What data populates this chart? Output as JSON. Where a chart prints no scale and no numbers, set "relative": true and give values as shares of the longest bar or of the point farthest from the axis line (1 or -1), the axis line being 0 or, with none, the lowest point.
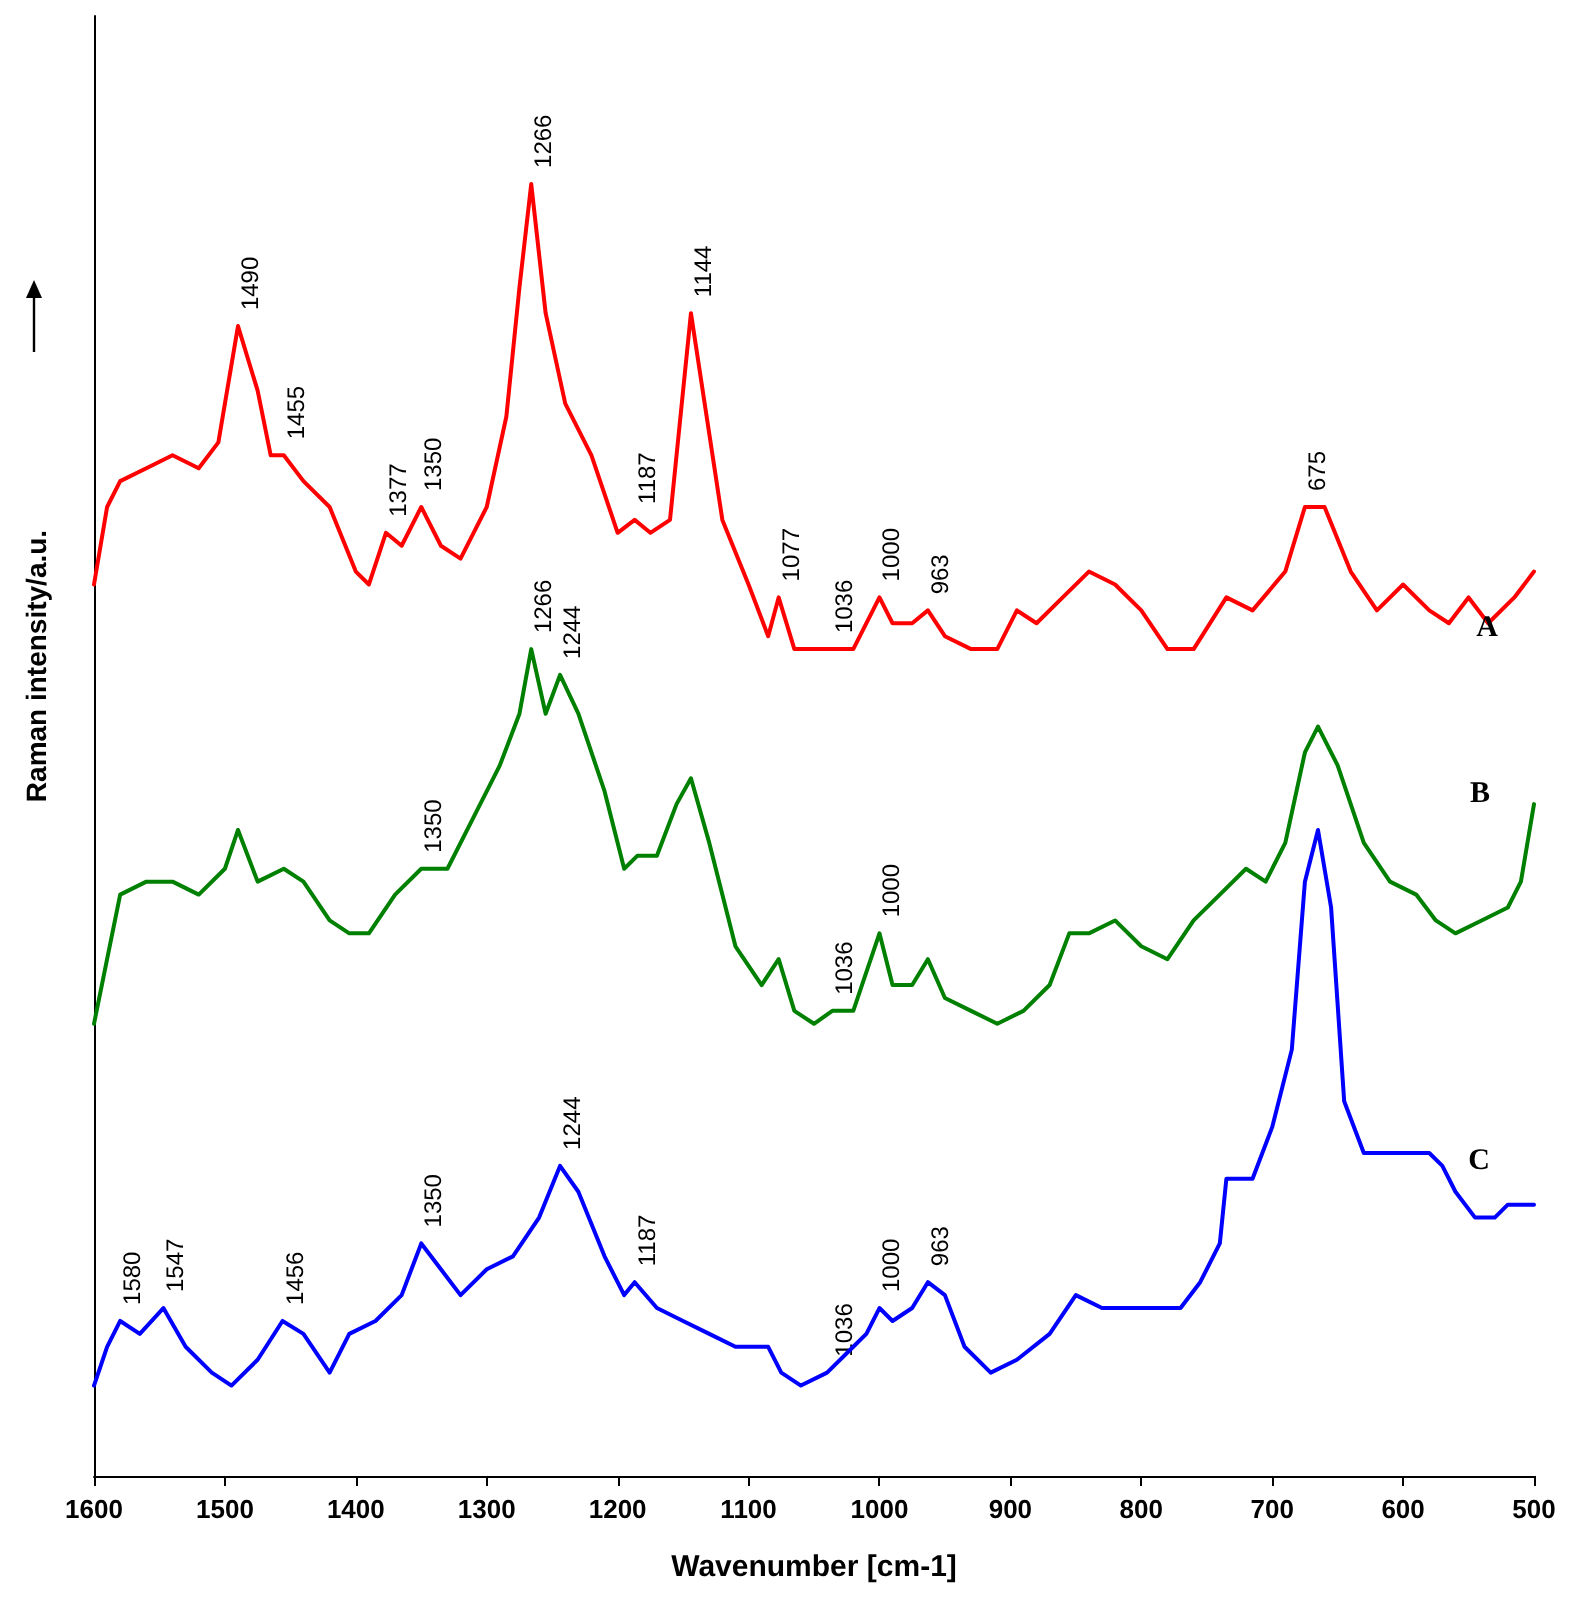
{
  "chart_data": {
    "type": "line",
    "relative": true,
    "xlabel": "Wavenumber [cm-1]",
    "ylabel": "Raman intensity/a.u.",
    "xlim": [
      1600,
      500
    ],
    "xticks": [
      1600,
      1500,
      1400,
      1300,
      1200,
      1100,
      1000,
      900,
      800,
      700,
      600,
      500
    ],
    "grid": false,
    "legend": false,
    "marker": "none",
    "line_style": "solid",
    "series": [
      {
        "name": "A",
        "color": "#ff0000",
        "x": [
          1600,
          1590,
          1580,
          1560,
          1540,
          1520,
          1505,
          1490,
          1475,
          1465,
          1455,
          1440,
          1420,
          1400,
          1390,
          1377,
          1365,
          1350,
          1335,
          1320,
          1300,
          1285,
          1275,
          1266,
          1255,
          1240,
          1220,
          1200,
          1187,
          1175,
          1160,
          1144,
          1135,
          1120,
          1100,
          1085,
          1077,
          1065,
          1050,
          1036,
          1020,
          1000,
          990,
          975,
          963,
          950,
          930,
          910,
          895,
          880,
          860,
          840,
          820,
          800,
          780,
          760,
          735,
          715,
          690,
          675,
          660,
          640,
          620,
          600,
          580,
          565,
          550,
          535,
          515,
          500
        ],
        "values": [
          0.69,
          0.75,
          0.77,
          0.78,
          0.79,
          0.78,
          0.8,
          0.89,
          0.84,
          0.79,
          0.79,
          0.77,
          0.75,
          0.7,
          0.69,
          0.73,
          0.72,
          0.75,
          0.72,
          0.71,
          0.75,
          0.82,
          0.92,
          1.0,
          0.9,
          0.83,
          0.79,
          0.73,
          0.74,
          0.73,
          0.74,
          0.9,
          0.84,
          0.74,
          0.69,
          0.65,
          0.68,
          0.64,
          0.64,
          0.64,
          0.64,
          0.68,
          0.66,
          0.66,
          0.67,
          0.65,
          0.64,
          0.64,
          0.67,
          0.66,
          0.68,
          0.7,
          0.69,
          0.67,
          0.64,
          0.64,
          0.68,
          0.67,
          0.7,
          0.75,
          0.75,
          0.7,
          0.67,
          0.69,
          0.67,
          0.66,
          0.68,
          0.66,
          0.68,
          0.7
        ]
      },
      {
        "name": "B",
        "color": "#008000",
        "x": [
          1600,
          1590,
          1580,
          1560,
          1540,
          1520,
          1500,
          1490,
          1475,
          1455,
          1440,
          1420,
          1405,
          1390,
          1370,
          1350,
          1330,
          1310,
          1290,
          1275,
          1266,
          1255,
          1244,
          1230,
          1210,
          1195,
          1185,
          1170,
          1155,
          1144,
          1130,
          1110,
          1090,
          1077,
          1065,
          1050,
          1036,
          1020,
          1000,
          990,
          975,
          963,
          950,
          930,
          910,
          890,
          870,
          855,
          840,
          820,
          800,
          780,
          760,
          740,
          720,
          705,
          690,
          675,
          665,
          650,
          630,
          610,
          590,
          575,
          560,
          540,
          520,
          510,
          500
        ],
        "values": [
          0.35,
          0.4,
          0.45,
          0.46,
          0.46,
          0.45,
          0.47,
          0.5,
          0.46,
          0.47,
          0.46,
          0.43,
          0.42,
          0.42,
          0.45,
          0.47,
          0.47,
          0.51,
          0.55,
          0.59,
          0.64,
          0.59,
          0.62,
          0.59,
          0.53,
          0.47,
          0.48,
          0.48,
          0.52,
          0.54,
          0.49,
          0.41,
          0.38,
          0.4,
          0.36,
          0.35,
          0.36,
          0.36,
          0.42,
          0.38,
          0.38,
          0.4,
          0.37,
          0.36,
          0.35,
          0.36,
          0.38,
          0.42,
          0.42,
          0.43,
          0.41,
          0.4,
          0.43,
          0.45,
          0.47,
          0.46,
          0.49,
          0.56,
          0.58,
          0.55,
          0.49,
          0.46,
          0.45,
          0.43,
          0.42,
          0.43,
          0.44,
          0.46,
          0.52
        ]
      },
      {
        "name": "C",
        "color": "#0000ff",
        "x": [
          1600,
          1590,
          1580,
          1565,
          1547,
          1530,
          1510,
          1495,
          1475,
          1456,
          1440,
          1420,
          1405,
          1385,
          1365,
          1350,
          1335,
          1320,
          1300,
          1280,
          1260,
          1244,
          1230,
          1210,
          1195,
          1187,
          1170,
          1150,
          1130,
          1110,
          1085,
          1075,
          1060,
          1040,
          1020,
          1010,
          1000,
          990,
          975,
          963,
          950,
          935,
          915,
          895,
          870,
          850,
          830,
          810,
          790,
          770,
          755,
          740,
          735,
          725,
          715,
          700,
          685,
          675,
          665,
          655,
          645,
          630,
          610,
          595,
          580,
          570,
          560,
          545,
          530,
          520,
          510,
          500
        ],
        "values": [
          0.07,
          0.1,
          0.12,
          0.11,
          0.13,
          0.1,
          0.08,
          0.07,
          0.09,
          0.12,
          0.11,
          0.08,
          0.11,
          0.12,
          0.14,
          0.18,
          0.16,
          0.14,
          0.16,
          0.17,
          0.2,
          0.24,
          0.22,
          0.17,
          0.14,
          0.15,
          0.13,
          0.12,
          0.11,
          0.1,
          0.1,
          0.08,
          0.07,
          0.08,
          0.1,
          0.11,
          0.13,
          0.12,
          0.13,
          0.15,
          0.14,
          0.1,
          0.08,
          0.09,
          0.11,
          0.14,
          0.13,
          0.13,
          0.13,
          0.13,
          0.15,
          0.18,
          0.23,
          0.23,
          0.23,
          0.27,
          0.33,
          0.46,
          0.5,
          0.44,
          0.29,
          0.25,
          0.25,
          0.25,
          0.25,
          0.24,
          0.22,
          0.2,
          0.2,
          0.21,
          0.21,
          0.21
        ]
      }
    ],
    "annotations": [
      {
        "text": "1490",
        "x": 1490,
        "y": 0.89
      },
      {
        "text": "1455",
        "x": 1455,
        "y": 0.79
      },
      {
        "text": "1377",
        "x": 1377,
        "y": 0.73
      },
      {
        "text": "1350",
        "x": 1350,
        "y": 0.75
      },
      {
        "text": "1266",
        "x": 1266,
        "y": 1.0
      },
      {
        "text": "1187",
        "x": 1187,
        "y": 0.74
      },
      {
        "text": "1144",
        "x": 1144,
        "y": 0.9
      },
      {
        "text": "1077",
        "x": 1077,
        "y": 0.68
      },
      {
        "text": "1036",
        "x": 1036,
        "y": 0.64
      },
      {
        "text": "1000",
        "x": 1000,
        "y": 0.68
      },
      {
        "text": "963",
        "x": 963,
        "y": 0.67
      },
      {
        "text": "675",
        "x": 675,
        "y": 0.75
      },
      {
        "text": "1266",
        "x": 1266,
        "y": 0.64
      },
      {
        "text": "1244",
        "x": 1244,
        "y": 0.62
      },
      {
        "text": "1350",
        "x": 1350,
        "y": 0.47
      },
      {
        "text": "1036",
        "x": 1036,
        "y": 0.36
      },
      {
        "text": "1000",
        "x": 1000,
        "y": 0.42
      },
      {
        "text": "1580",
        "x": 1580,
        "y": 0.12
      },
      {
        "text": "1547",
        "x": 1547,
        "y": 0.13
      },
      {
        "text": "1456",
        "x": 1456,
        "y": 0.12
      },
      {
        "text": "1350",
        "x": 1350,
        "y": 0.18
      },
      {
        "text": "1244",
        "x": 1244,
        "y": 0.24
      },
      {
        "text": "1187",
        "x": 1187,
        "y": 0.15
      },
      {
        "text": "1036",
        "x": 1036,
        "y": 0.08
      },
      {
        "text": "1000",
        "x": 1000,
        "y": 0.13
      },
      {
        "text": "963",
        "x": 963,
        "y": 0.15
      }
    ]
  }
}
